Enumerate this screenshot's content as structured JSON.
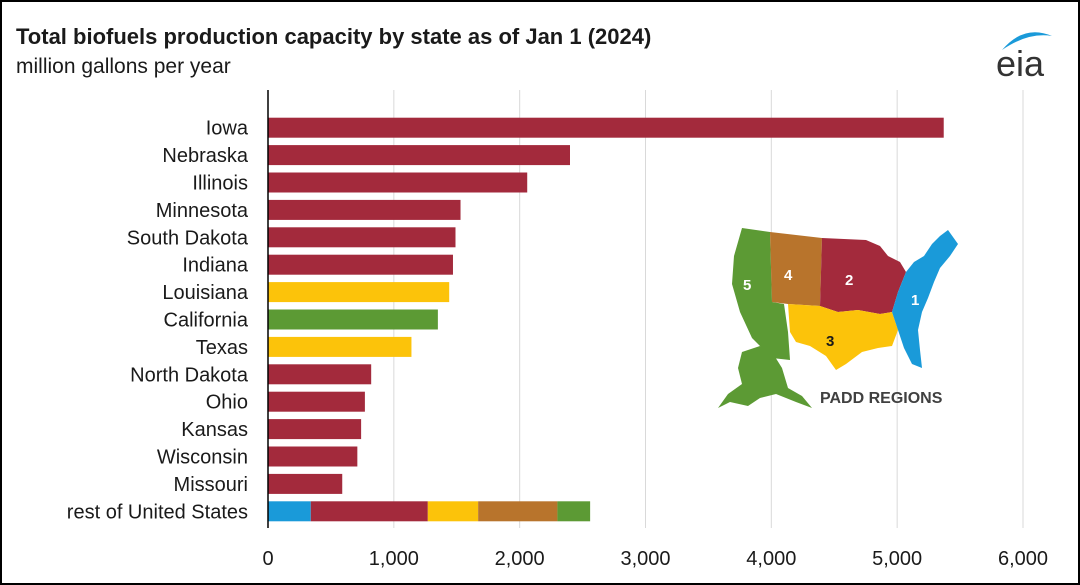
{
  "header": {
    "title": "Total biofuels production capacity by state as of Jan 1 (2024)",
    "subtitle": "million gallons per year",
    "logo_text": "eia"
  },
  "colors": {
    "padd1": "#1a9ad9",
    "padd2": "#a32a3c",
    "padd3": "#fcc30a",
    "padd4": "#b8742c",
    "padd5": "#5c9a34",
    "gridline": "#d9d9d9",
    "axis": "#000000"
  },
  "chart_data": {
    "type": "bar",
    "orientation": "horizontal",
    "title": "Total biofuels production capacity by state as of Jan 1 (2024)",
    "subtitle": "million gallons per year",
    "xlabel": "",
    "ylabel": "",
    "xlim": [
      0,
      6000
    ],
    "xticks": [
      0,
      1000,
      2000,
      3000,
      4000,
      5000,
      6000
    ],
    "xtick_labels": [
      "0",
      "1,000",
      "2,000",
      "3,000",
      "4,000",
      "5,000",
      "6,000"
    ],
    "grid": "vertical",
    "categories": [
      "Iowa",
      "Nebraska",
      "Illinois",
      "Minnesota",
      "South Dakota",
      "Indiana",
      "Louisiana",
      "California",
      "Texas",
      "North Dakota",
      "Ohio",
      "Kansas",
      "Wisconsin",
      "Missouri"
    ],
    "values": [
      5370,
      2400,
      2060,
      1530,
      1490,
      1470,
      1440,
      1350,
      1140,
      820,
      770,
      740,
      710,
      590
    ],
    "padd": [
      2,
      2,
      2,
      2,
      2,
      2,
      3,
      5,
      3,
      2,
      2,
      2,
      2,
      2
    ],
    "rest": {
      "label": "rest of United States",
      "segments": [
        {
          "padd": 1,
          "value": 340
        },
        {
          "padd": 2,
          "value": 930
        },
        {
          "padd": 3,
          "value": 400
        },
        {
          "padd": 4,
          "value": 630
        },
        {
          "padd": 5,
          "value": 260
        }
      ]
    }
  },
  "map": {
    "caption": "PADD REGIONS",
    "labels": [
      "1",
      "2",
      "3",
      "4",
      "5"
    ]
  }
}
